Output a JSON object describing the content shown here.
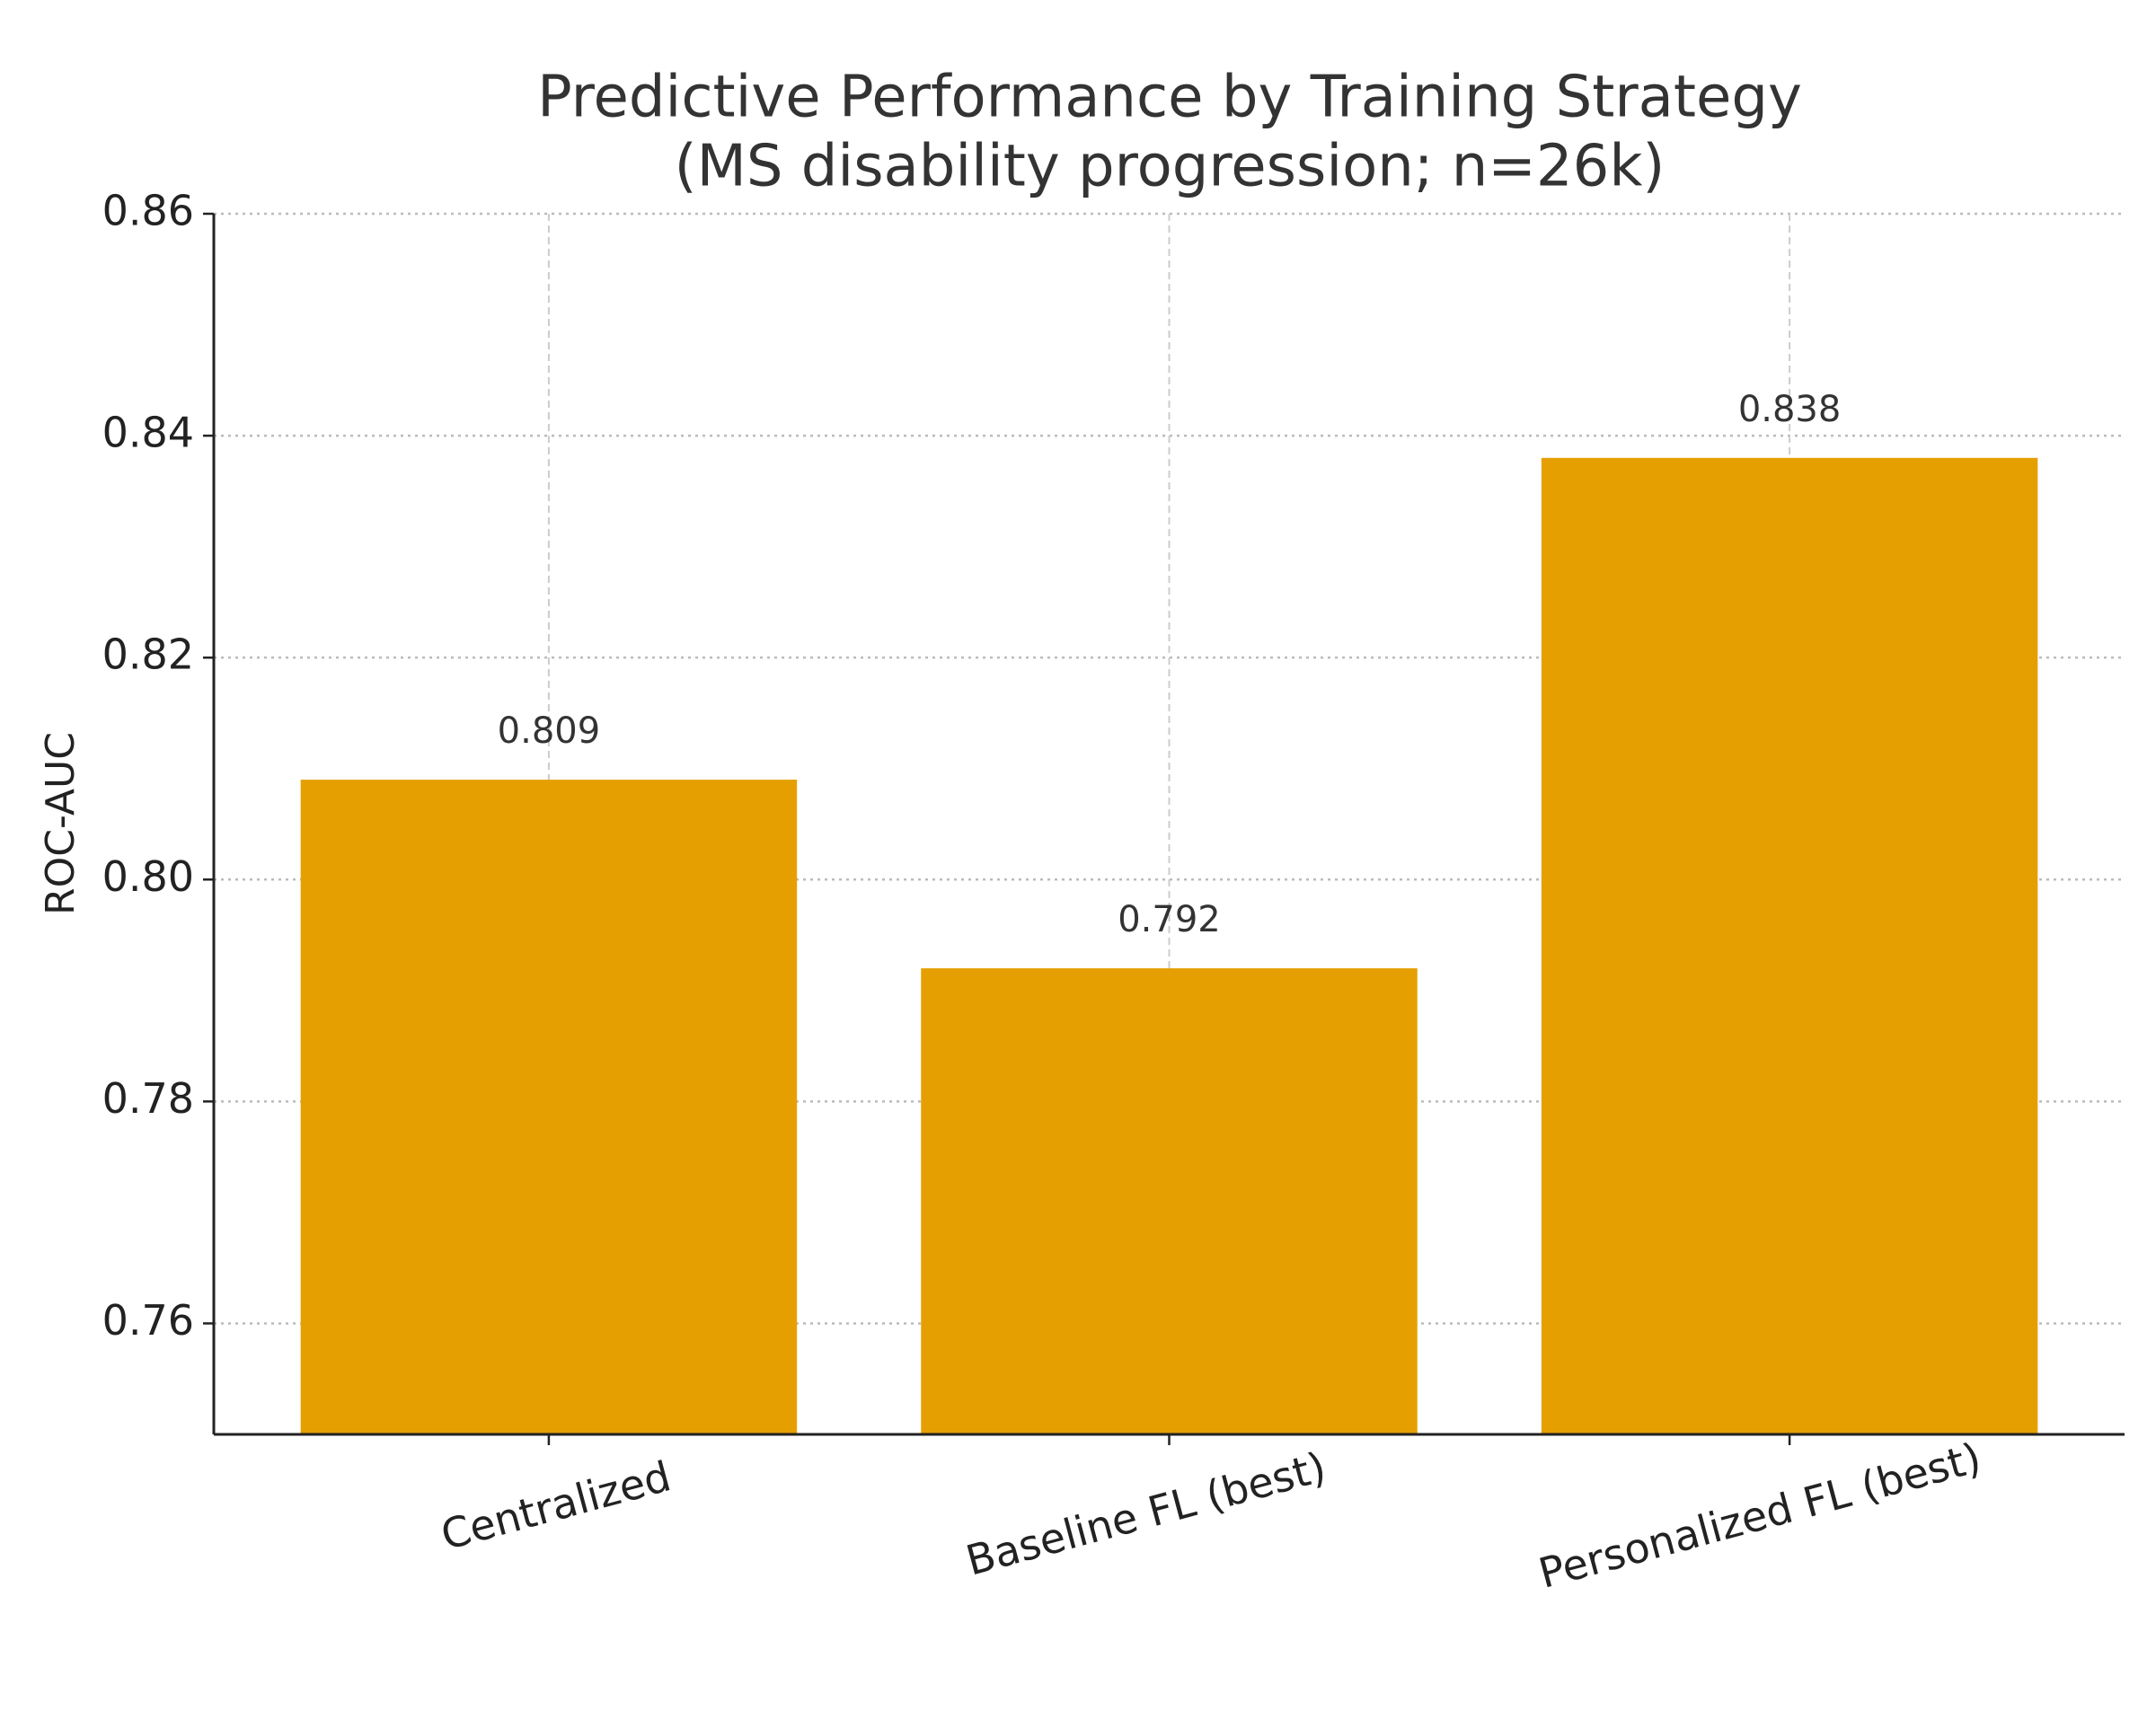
{
  "chart_data": {
    "type": "bar",
    "title": [
      "Predictive Performance by Training Strategy",
      "(MS disability progression; n=26k)"
    ],
    "y_label": "ROC-AUC",
    "categories": [
      "Centralized",
      "Baseline FL (best)",
      "Personalized FL (best)"
    ],
    "values": [
      0.809,
      0.792,
      0.838
    ],
    "color": "#e69f00",
    "ylim": [
      0.75,
      0.86
    ],
    "yticks": [
      0.76,
      0.78,
      {
        "value": 0.8,
        "label": "0.80"
      },
      0.82,
      0.84,
      0.86
    ],
    "grid": true
  }
}
